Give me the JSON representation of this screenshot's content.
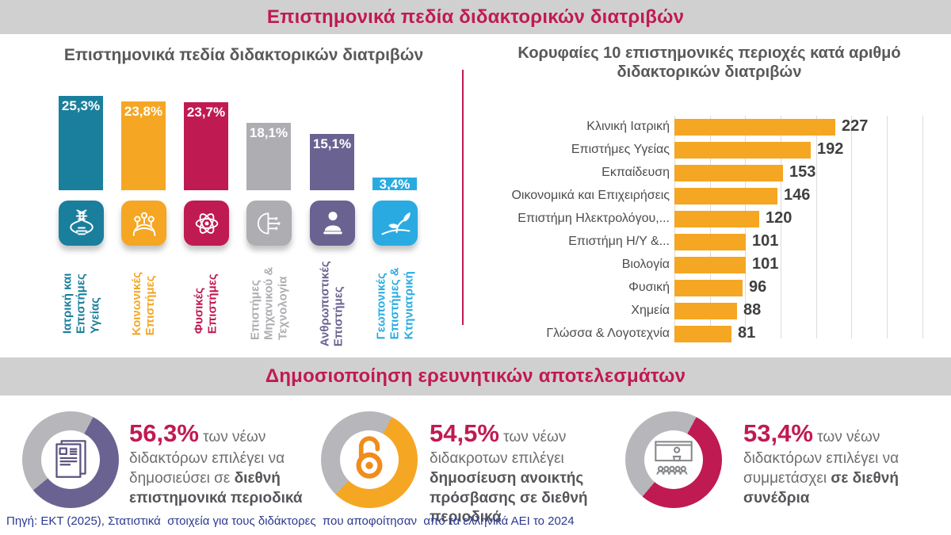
{
  "header": {
    "title": "Επιστημονικά πεδία διδακτορικών διατριβών"
  },
  "section2": {
    "title": "Δημοσιοποίηση ερευνητικών αποτελεσμάτων"
  },
  "footer": {
    "source": "Πηγή: ΕΚΤ (2025), Στατιστικά  στοιχεία για τους διδάκτορες  που αποφοίτησαν  από τα ελληνικά ΑΕΙ το 2024"
  },
  "colors": {
    "crimson": "#C01A52",
    "teal": "#1A7F9C",
    "orange": "#F5A623",
    "silver": "#ADADB2",
    "purple": "#6A6391",
    "light_blue": "#29ABE2",
    "band_bg": "#D1D0D0",
    "title_gray": "#58595B",
    "body_gray": "#6D6E71",
    "donut_track": "#B7B6BA",
    "value_dark": "#3F3F3F",
    "footer_navy": "#2B3990",
    "open_access_orange": "#F08C1D",
    "grid_line": "#DBDBDB"
  },
  "chart_data": [
    {
      "type": "bar",
      "title": "Επιστημονικά πεδία διδακτορικών διατριβών",
      "categories": [
        "Ιατρική και\nΕπιστήμες\nΥγείας",
        "Κοινωνικές\nΕπιστήμες",
        "Φυσικές\nΕπιστήμες",
        "Επιστήμες\nΜηχανικού &\nΤεχνολογία",
        "Ανθρωπιστικές\nΕπιστήμες",
        "Γεωπονικές\nΕπιστήμες &\nΚτηνιατρική"
      ],
      "values": [
        25.3,
        23.8,
        23.7,
        18.1,
        15.1,
        3.4
      ],
      "value_labels": [
        "25,3%",
        "23,8%",
        "23,7%",
        "18,1%",
        "15,1%",
        "3,4%"
      ],
      "bar_colors": [
        "#1A7F9C",
        "#F5A623",
        "#C01A52",
        "#ADADB2",
        "#6A6391",
        "#29ABE2"
      ],
      "icons": [
        "dna-icon",
        "society-globe-icon",
        "atom-icon",
        "circuit-icon",
        "statue-icon",
        "sprout-icon"
      ],
      "xlabel": "",
      "ylabel": "",
      "ylim": [
        0,
        26.5
      ],
      "grid": false
    },
    {
      "type": "bar",
      "orientation": "horizontal",
      "title": "Κορυφαίες 10 επιστημονικές περιοχές κατά αριθμό διδακτορικών διατριβών",
      "categories": [
        "Κλινική Ιατρική",
        "Επιστήμες Υγείας",
        "Εκπαίδευση",
        "Οικονομικά και Επιχειρήσεις",
        "Επιστήμη Ηλεκτρολόγου,...",
        "Επιστήμη Η/Υ &...",
        "Βιολογία",
        "Φυσική",
        "Χημεία",
        "Γλώσσα & Λογοτεχνία"
      ],
      "values": [
        227,
        192,
        153,
        146,
        120,
        101,
        101,
        96,
        88,
        81
      ],
      "bar_color": "#F5A623",
      "xlabel": "",
      "ylabel": "",
      "xlim": [
        0,
        375
      ],
      "grid_step": 50,
      "grid": true
    },
    {
      "type": "pie",
      "icon": "journal-icon",
      "values": [
        56.3,
        43.7
      ],
      "slice_colors": [
        "#6A6391",
        "#B7B6BA"
      ],
      "caption": [
        {
          "text": "56,3%",
          "style": "pct"
        },
        {
          "text": " των νέων\nδιδακτόρων  επιλέγει να\nδημοσιεύσει σε ",
          "style": "plain"
        },
        {
          "text": "διεθνή\nεπιστημονικά περιοδικά",
          "style": "bold"
        }
      ]
    },
    {
      "type": "pie",
      "icon": "open-access-icon",
      "values": [
        54.5,
        45.5
      ],
      "slice_colors": [
        "#F5A623",
        "#B7B6BA"
      ],
      "caption": [
        {
          "text": "54,5%",
          "style": "pct"
        },
        {
          "text": " των νέων\nδιδακροτων επιλέγει\n",
          "style": "plain"
        },
        {
          "text": "δημοσίευση ανοικτής\nπρόσβασης σε διεθνή\nπεριοδικά",
          "style": "bold"
        }
      ]
    },
    {
      "type": "pie",
      "icon": "conference-icon",
      "values": [
        53.4,
        46.6
      ],
      "slice_colors": [
        "#C01A52",
        "#B7B6BA"
      ],
      "caption": [
        {
          "text": "53,4%",
          "style": "pct"
        },
        {
          "text": " των νέων\nδιδακτόρων  επιλέγει να\nσυμμετάσχει ",
          "style": "plain"
        },
        {
          "text": "σε διεθνή\nσυνέδρια",
          "style": "bold"
        }
      ]
    }
  ]
}
